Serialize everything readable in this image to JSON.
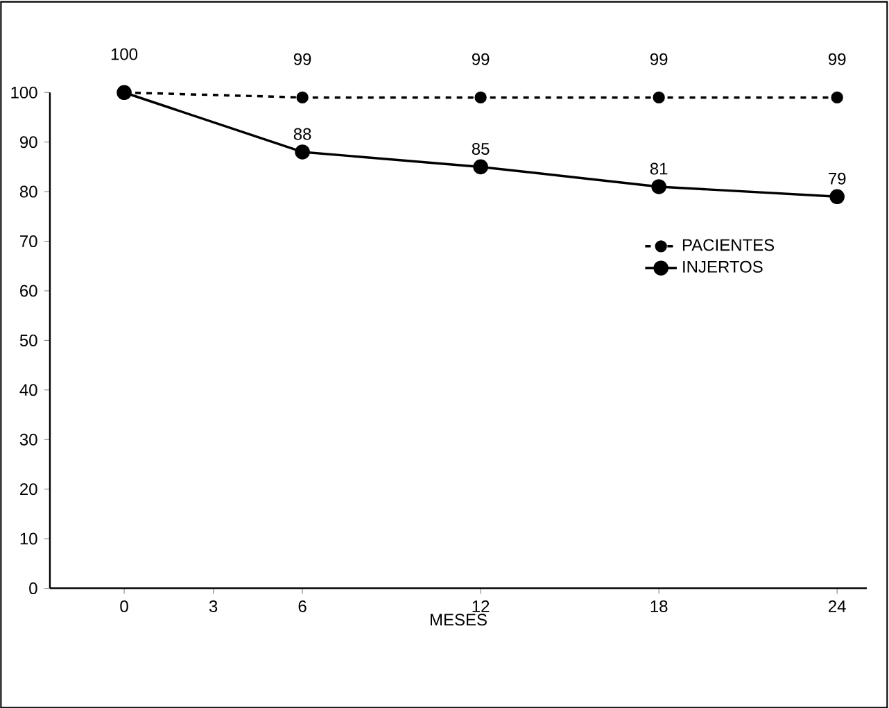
{
  "chart_data": {
    "type": "line",
    "xlabel": "MESES",
    "x": [
      0,
      6,
      12,
      18,
      24
    ],
    "series": [
      {
        "name": "PACIENTES",
        "color": "#000000",
        "values": [
          100,
          99,
          99,
          99,
          99
        ],
        "line_style": "dashed",
        "value_labels": [
          "100",
          "99",
          "99",
          "99",
          "99"
        ]
      },
      {
        "name": "INJERTOS",
        "color": "#000000",
        "values": [
          100,
          88,
          85,
          81,
          79
        ],
        "line_style": "solid",
        "value_labels": [
          null,
          "88",
          "85",
          "81",
          "79"
        ]
      }
    ],
    "xlim": [
      -2.5,
      25
    ],
    "xticks": [
      0,
      3,
      6,
      12,
      18,
      24
    ],
    "ylim": [
      0,
      100
    ],
    "yticks": [
      0,
      10,
      20,
      30,
      40,
      50,
      60,
      70,
      80,
      90,
      100
    ],
    "marker": "circle",
    "legend": "right",
    "grid": false
  }
}
